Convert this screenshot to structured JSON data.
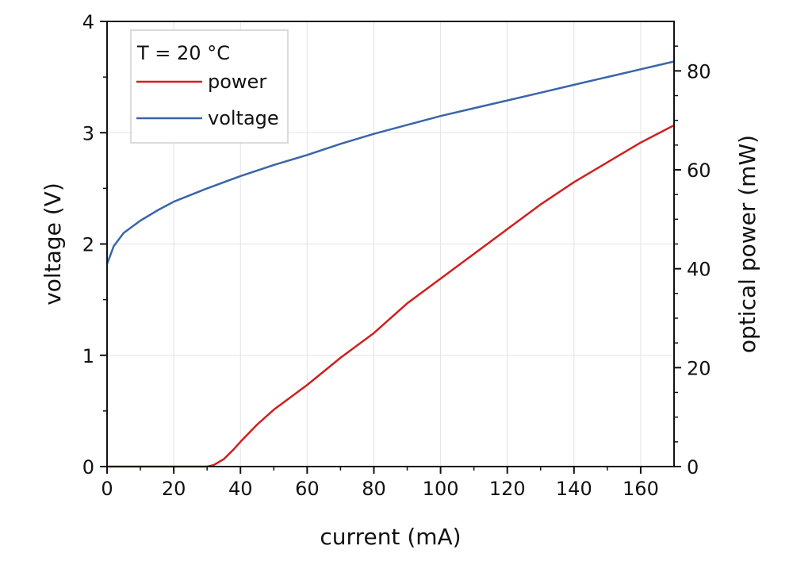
{
  "chart_data": {
    "type": "line",
    "xlabel": "current (mA)",
    "ylabel_left": "voltage (V)",
    "ylabel_right": "optical power (mW)",
    "xlim": [
      0,
      170
    ],
    "ylim_left": [
      0,
      4
    ],
    "ylim_right": [
      0,
      90
    ],
    "x_ticks": [
      0,
      20,
      40,
      60,
      80,
      100,
      120,
      140,
      160
    ],
    "y_left_ticks": [
      0,
      1,
      2,
      3,
      4
    ],
    "y_right_ticks": [
      0,
      20,
      40,
      60,
      80
    ],
    "grid": true,
    "legend": {
      "placement": "top-left",
      "title": "T = 20 °C",
      "entries": [
        "power",
        "voltage"
      ]
    },
    "series": [
      {
        "name": "power",
        "axis": "right",
        "color": "#d11f1f",
        "x": [
          0,
          10,
          20,
          25,
          30,
          32,
          35,
          38,
          40,
          45,
          50,
          55,
          60,
          70,
          80,
          90,
          100,
          110,
          120,
          130,
          140,
          150,
          160,
          170
        ],
        "y": [
          0,
          0,
          0,
          0,
          0,
          0.3,
          1.5,
          3.5,
          5,
          8.5,
          11.5,
          14,
          16.5,
          22,
          27,
          33,
          38,
          43,
          48,
          53,
          57.5,
          61.5,
          65.5,
          69
        ]
      },
      {
        "name": "voltage",
        "axis": "left",
        "color": "#3a65a8",
        "x": [
          0,
          2,
          5,
          10,
          15,
          20,
          30,
          40,
          50,
          60,
          70,
          80,
          90,
          100,
          110,
          120,
          130,
          140,
          150,
          160,
          170
        ],
        "y": [
          1.82,
          1.98,
          2.1,
          2.21,
          2.3,
          2.38,
          2.5,
          2.61,
          2.71,
          2.8,
          2.9,
          2.99,
          3.07,
          3.15,
          3.22,
          3.29,
          3.36,
          3.43,
          3.5,
          3.57,
          3.64
        ]
      }
    ]
  }
}
